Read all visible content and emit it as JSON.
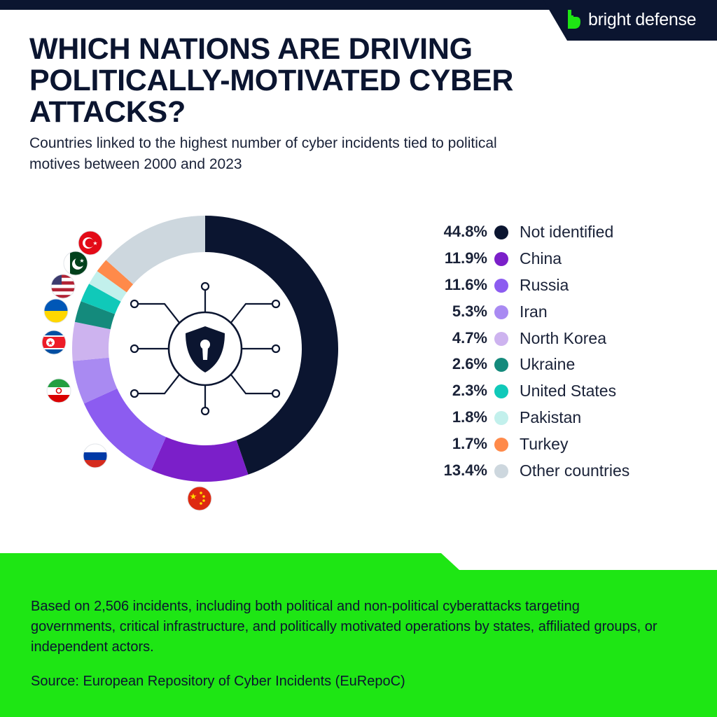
{
  "brand": {
    "name": "bright defense"
  },
  "title": "WHICH NATIONS ARE DRIVING POLITICALLY-MOTIVATED CYBER ATTACKS?",
  "subtitle": "Countries linked to the highest number of cyber incidents tied to political motives between 2000 and 2023",
  "colors": {
    "navy": "#0b1530",
    "green": "#1ee614"
  },
  "chart_data": {
    "type": "pie",
    "title": "WHICH NATIONS ARE DRIVING POLITICALLY-MOTIVATED CYBER ATTACKS?",
    "subtitle": "Countries linked to the highest number of cyber incidents tied to political motives between 2000 and 2023",
    "unit": "%",
    "donut": true,
    "legend_position": "right",
    "center_icon": "shield-keyhole-circuit-icon",
    "series": [
      {
        "label": "Not identified",
        "value": 44.8,
        "pct": "44.8%",
        "color": "#0b1530",
        "flag": null
      },
      {
        "label": "China",
        "value": 11.9,
        "pct": "11.9%",
        "color": "#7b1fc9",
        "flag": "china-flag-icon"
      },
      {
        "label": "Russia",
        "value": 11.6,
        "pct": "11.6%",
        "color": "#8c5cf0",
        "flag": "russia-flag-icon"
      },
      {
        "label": "Iran",
        "value": 5.3,
        "pct": "5.3%",
        "color": "#a98af2",
        "flag": "iran-flag-icon"
      },
      {
        "label": "North Korea",
        "value": 4.7,
        "pct": "4.7%",
        "color": "#cdb3ef",
        "flag": "north-korea-flag-icon"
      },
      {
        "label": "Ukraine",
        "value": 2.6,
        "pct": "2.6%",
        "color": "#148a7c",
        "flag": "ukraine-flag-icon"
      },
      {
        "label": "United States",
        "value": 2.3,
        "pct": "2.3%",
        "color": "#10c9b9",
        "flag": "united-states-flag-icon"
      },
      {
        "label": "Pakistan",
        "value": 1.8,
        "pct": "1.8%",
        "color": "#c2f0ec",
        "flag": "pakistan-flag-icon"
      },
      {
        "label": "Turkey",
        "value": 1.7,
        "pct": "1.7%",
        "color": "#ff8a4a",
        "flag": "turkey-flag-icon"
      },
      {
        "label": "Other countries",
        "value": 13.4,
        "pct": "13.4%",
        "color": "#cdd7de",
        "flag": null
      }
    ]
  },
  "footer": {
    "note": "Based on 2,506 incidents, including both political and non-political cyberattacks targeting governments, critical infrastructure, and politically motivated operations by states, affiliated groups, or independent actors.",
    "source": "Source: European Repository of Cyber Incidents (EuRepoC)"
  }
}
